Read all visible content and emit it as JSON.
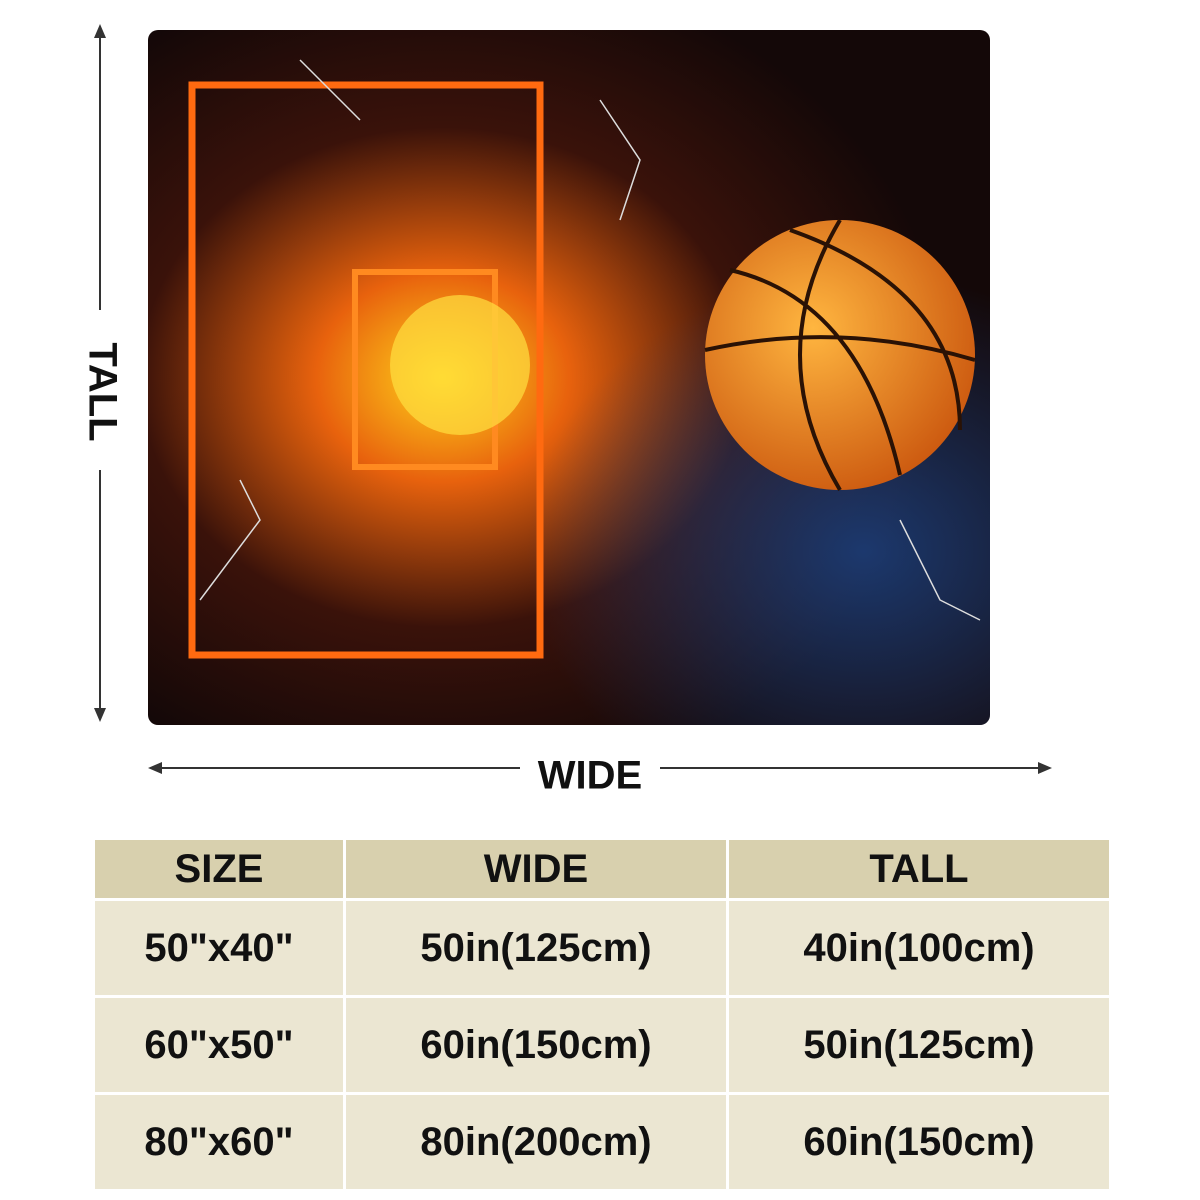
{
  "labels": {
    "tall": "TALL",
    "wide": "WIDE"
  },
  "table": {
    "header": [
      "SIZE",
      "WIDE",
      "TALL"
    ],
    "rows": [
      [
        "50\"x40\"",
        "50in(125cm)",
        "40in(100cm)"
      ],
      [
        "60\"x50\"",
        "60in(150cm)",
        "50in(125cm)"
      ],
      [
        "80\"x60\"",
        "80in(200cm)",
        "60in(150cm)"
      ]
    ]
  }
}
